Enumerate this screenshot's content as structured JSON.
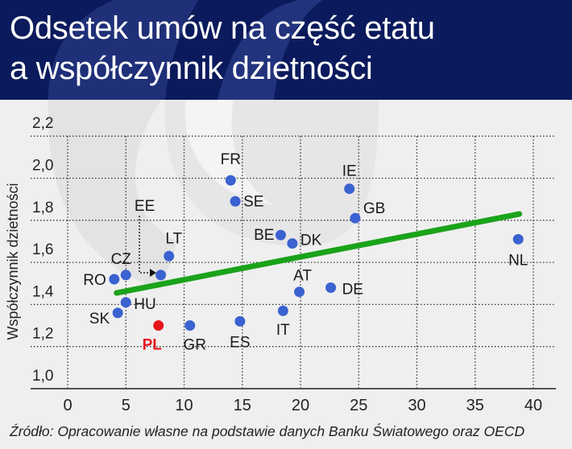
{
  "header": {
    "title_line1": "Odsetek umów na część etatu",
    "title_line2": "a współczynnik dzietności",
    "background_color": "#0b1a5c"
  },
  "footer": {
    "source": "Źródło: Opracowanie własne na podstawie danych Banku Światowego oraz OECD"
  },
  "chart_data": {
    "type": "scatter",
    "title": "Odsetek umów na część etatu a współczynnik dzietności",
    "xlabel": "",
    "ylabel": "Współczynnik dzietności",
    "xlim": [
      0,
      40
    ],
    "ylim": [
      1.0,
      2.2
    ],
    "x_ticks": [
      "0",
      "5",
      "10",
      "15",
      "20",
      "25",
      "30",
      "35",
      "40"
    ],
    "y_ticks": [
      "1,0",
      "1,2",
      "1,4",
      "1,6",
      "1,8",
      "2,0",
      "2,2"
    ],
    "grid": true,
    "point_color": "#3a62d0",
    "highlight_color": "#e8141b",
    "trend_color": "#1aa31a",
    "points": [
      {
        "label": "FR",
        "x": 14.0,
        "y": 1.99
      },
      {
        "label": "SE",
        "x": 14.4,
        "y": 1.89
      },
      {
        "label": "IE",
        "x": 24.2,
        "y": 1.95
      },
      {
        "label": "GB",
        "x": 24.7,
        "y": 1.81
      },
      {
        "label": "BE",
        "x": 18.3,
        "y": 1.73
      },
      {
        "label": "DK",
        "x": 19.3,
        "y": 1.69
      },
      {
        "label": "NL",
        "x": 38.7,
        "y": 1.71
      },
      {
        "label": "LT",
        "x": 8.7,
        "y": 1.63
      },
      {
        "label": "EE",
        "x": 8.0,
        "y": 1.54
      },
      {
        "label": "CZ",
        "x": 5.0,
        "y": 1.54
      },
      {
        "label": "RO",
        "x": 4.0,
        "y": 1.52
      },
      {
        "label": "AT",
        "x": 19.9,
        "y": 1.46
      },
      {
        "label": "DE",
        "x": 22.6,
        "y": 1.48
      },
      {
        "label": "HU",
        "x": 5.0,
        "y": 1.41
      },
      {
        "label": "SK",
        "x": 4.3,
        "y": 1.36
      },
      {
        "label": "IT",
        "x": 18.5,
        "y": 1.37
      },
      {
        "label": "ES",
        "x": 14.8,
        "y": 1.32
      },
      {
        "label": "GR",
        "x": 10.5,
        "y": 1.3
      },
      {
        "label": "PL",
        "x": 7.8,
        "y": 1.3,
        "highlight": true
      }
    ],
    "trend_line": {
      "x": [
        4.2,
        38.8
      ],
      "y": [
        1.455,
        1.83
      ]
    },
    "annotations": [
      {
        "text": "EE",
        "arrow_to": "EE"
      }
    ]
  }
}
